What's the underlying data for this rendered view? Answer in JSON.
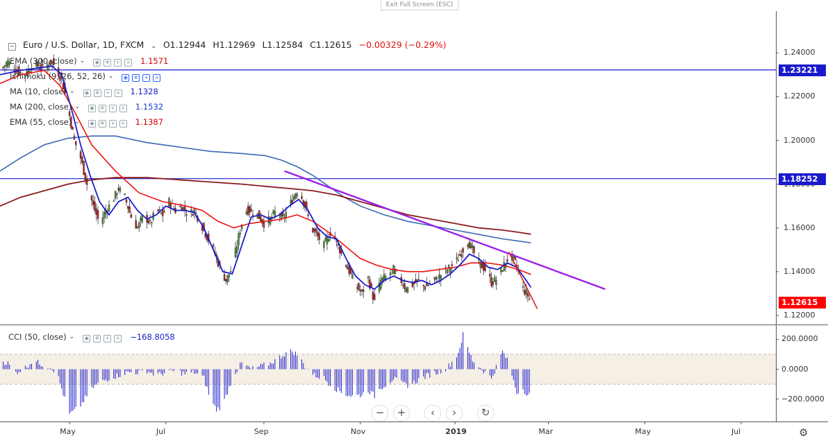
{
  "window": {
    "exit_label": "Exit Full Screen (ESC)"
  },
  "symbol": {
    "name": "Euro / U.S. Dollar, 1D, FXCM",
    "open": "O1.12944",
    "high": "H1.12969",
    "low": "L1.12584",
    "close": "C1.12615",
    "change": "−0.00329 (−0.29%)"
  },
  "indicators": [
    {
      "label": "EMA (300, close)",
      "value": "1.1571",
      "color": "#d50000"
    },
    {
      "label": "Ichimoku (9, 26, 52, 26)",
      "value": "",
      "color": "#2962ff"
    },
    {
      "label": "MA (10, close)",
      "value": "1.1328",
      "color": "#1a1acc"
    },
    {
      "label": "MA (200, close)",
      "value": "1.1532",
      "color": "#1a3acc"
    },
    {
      "label": "EMA (55, close)",
      "value": "1.1387",
      "color": "#d50000"
    }
  ],
  "cci": {
    "label": "CCI (50, close)",
    "value": "−168.8058"
  },
  "price_tags": [
    {
      "value": "1.23221",
      "price": 1.23221,
      "color": "#1a1acc"
    },
    {
      "value": "1.18252",
      "price": 1.18252,
      "color": "#1a1acc"
    },
    {
      "value": "1.12615",
      "price": 1.12615,
      "color": "#ff0000"
    }
  ],
  "nav_buttons": [
    "−",
    "+",
    "‹",
    "›",
    "↻"
  ],
  "settings_icon": "gear-icon",
  "chart_data": {
    "type": "candlestick",
    "y_ticks": [
      "1.24000",
      "1.22000",
      "1.20000",
      "1.18000",
      "1.16000",
      "1.14000",
      "1.12000"
    ],
    "y_tick_values": [
      1.24,
      1.22,
      1.2,
      1.18,
      1.16,
      1.14,
      1.12
    ],
    "ylim": [
      1.1165,
      1.2515
    ],
    "x_ticks": [
      "May",
      "Jul",
      "Sep",
      "Nov",
      "2019",
      "Mar",
      "May",
      "Jul"
    ],
    "x_tick_days": [
      91,
      152,
      214,
      275,
      335,
      394,
      455,
      516
    ],
    "xlim_days": [
      47,
      538
    ],
    "cci_ticks": [
      "200.0000",
      "0.0000",
      "−200.0000"
    ],
    "cci_tick_values": [
      200,
      0,
      -200
    ],
    "cci_band": [
      100,
      -100
    ],
    "cci_ylim": [
      -340,
      290
    ],
    "price_path": [
      [
        47,
        1.232
      ],
      [
        52,
        1.236
      ],
      [
        57,
        1.232
      ],
      [
        63,
        1.23
      ],
      [
        68,
        1.235
      ],
      [
        74,
        1.233
      ],
      [
        80,
        1.236
      ],
      [
        86,
        1.228
      ],
      [
        90,
        1.215
      ],
      [
        94,
        1.2
      ],
      [
        98,
        1.192
      ],
      [
        102,
        1.18
      ],
      [
        106,
        1.17
      ],
      [
        110,
        1.162
      ],
      [
        114,
        1.168
      ],
      [
        118,
        1.172
      ],
      [
        122,
        1.178
      ],
      [
        126,
        1.174
      ],
      [
        130,
        1.165
      ],
      [
        134,
        1.16
      ],
      [
        138,
        1.166
      ],
      [
        142,
        1.162
      ],
      [
        146,
        1.168
      ],
      [
        150,
        1.166
      ],
      [
        154,
        1.172
      ],
      [
        158,
        1.168
      ],
      [
        162,
        1.17
      ],
      [
        166,
        1.166
      ],
      [
        170,
        1.168
      ],
      [
        174,
        1.162
      ],
      [
        178,
        1.156
      ],
      [
        182,
        1.15
      ],
      [
        186,
        1.142
      ],
      [
        190,
        1.136
      ],
      [
        194,
        1.142
      ],
      [
        198,
        1.156
      ],
      [
        202,
        1.168
      ],
      [
        206,
        1.168
      ],
      [
        210,
        1.166
      ],
      [
        214,
        1.162
      ],
      [
        218,
        1.164
      ],
      [
        222,
        1.168
      ],
      [
        226,
        1.164
      ],
      [
        230,
        1.17
      ],
      [
        234,
        1.176
      ],
      [
        236,
        1.178
      ],
      [
        240,
        1.17
      ],
      [
        244,
        1.16
      ],
      [
        248,
        1.156
      ],
      [
        252,
        1.152
      ],
      [
        256,
        1.158
      ],
      [
        260,
        1.154
      ],
      [
        264,
        1.146
      ],
      [
        268,
        1.14
      ],
      [
        272,
        1.134
      ],
      [
        276,
        1.13
      ],
      [
        280,
        1.137
      ],
      [
        284,
        1.126
      ],
      [
        288,
        1.136
      ],
      [
        292,
        1.138
      ],
      [
        296,
        1.141
      ],
      [
        300,
        1.137
      ],
      [
        304,
        1.132
      ],
      [
        308,
        1.134
      ],
      [
        312,
        1.136
      ],
      [
        316,
        1.133
      ],
      [
        320,
        1.135
      ],
      [
        324,
        1.137
      ],
      [
        328,
        1.14
      ],
      [
        332,
        1.142
      ],
      [
        336,
        1.145
      ],
      [
        340,
        1.15
      ],
      [
        343,
        1.154
      ],
      [
        346,
        1.15
      ],
      [
        350,
        1.144
      ],
      [
        354,
        1.141
      ],
      [
        358,
        1.135
      ],
      [
        362,
        1.137
      ],
      [
        366,
        1.143
      ],
      [
        369,
        1.147
      ],
      [
        372,
        1.146
      ],
      [
        375,
        1.14
      ],
      [
        378,
        1.132
      ],
      [
        381,
        1.129
      ],
      [
        383,
        1.1262
      ]
    ],
    "ema55_path": [
      [
        47,
        1.226
      ],
      [
        60,
        1.23
      ],
      [
        75,
        1.232
      ],
      [
        85,
        1.225
      ],
      [
        95,
        1.212
      ],
      [
        105,
        1.198
      ],
      [
        120,
        1.186
      ],
      [
        135,
        1.176
      ],
      [
        150,
        1.172
      ],
      [
        165,
        1.17
      ],
      [
        175,
        1.168
      ],
      [
        185,
        1.163
      ],
      [
        195,
        1.16
      ],
      [
        205,
        1.162
      ],
      [
        215,
        1.163
      ],
      [
        225,
        1.164
      ],
      [
        235,
        1.166
      ],
      [
        245,
        1.163
      ],
      [
        255,
        1.158
      ],
      [
        265,
        1.152
      ],
      [
        275,
        1.146
      ],
      [
        285,
        1.143
      ],
      [
        295,
        1.141
      ],
      [
        305,
        1.14
      ],
      [
        315,
        1.14
      ],
      [
        325,
        1.141
      ],
      [
        335,
        1.142
      ],
      [
        345,
        1.144
      ],
      [
        355,
        1.144
      ],
      [
        365,
        1.143
      ],
      [
        375,
        1.141
      ],
      [
        383,
        1.1387
      ]
    ],
    "ma10_path": [
      [
        47,
        1.23
      ],
      [
        60,
        1.232
      ],
      [
        70,
        1.233
      ],
      [
        80,
        1.234
      ],
      [
        86,
        1.23
      ],
      [
        92,
        1.215
      ],
      [
        98,
        1.198
      ],
      [
        104,
        1.184
      ],
      [
        110,
        1.172
      ],
      [
        116,
        1.166
      ],
      [
        122,
        1.172
      ],
      [
        128,
        1.174
      ],
      [
        134,
        1.168
      ],
      [
        140,
        1.164
      ],
      [
        146,
        1.166
      ],
      [
        152,
        1.17
      ],
      [
        158,
        1.168
      ],
      [
        164,
        1.168
      ],
      [
        170,
        1.167
      ],
      [
        176,
        1.16
      ],
      [
        182,
        1.15
      ],
      [
        188,
        1.14
      ],
      [
        194,
        1.139
      ],
      [
        200,
        1.152
      ],
      [
        206,
        1.165
      ],
      [
        212,
        1.166
      ],
      [
        218,
        1.164
      ],
      [
        224,
        1.166
      ],
      [
        230,
        1.17
      ],
      [
        236,
        1.173
      ],
      [
        242,
        1.168
      ],
      [
        248,
        1.16
      ],
      [
        254,
        1.156
      ],
      [
        260,
        1.155
      ],
      [
        266,
        1.146
      ],
      [
        272,
        1.138
      ],
      [
        278,
        1.134
      ],
      [
        284,
        1.132
      ],
      [
        290,
        1.136
      ],
      [
        296,
        1.138
      ],
      [
        302,
        1.136
      ],
      [
        308,
        1.135
      ],
      [
        314,
        1.136
      ],
      [
        320,
        1.134
      ],
      [
        326,
        1.136
      ],
      [
        332,
        1.139
      ],
      [
        338,
        1.143
      ],
      [
        344,
        1.148
      ],
      [
        350,
        1.146
      ],
      [
        356,
        1.142
      ],
      [
        362,
        1.141
      ],
      [
        368,
        1.144
      ],
      [
        374,
        1.142
      ],
      [
        380,
        1.136
      ],
      [
        383,
        1.1328
      ]
    ],
    "ma200_path": [
      [
        47,
        1.186
      ],
      [
        60,
        1.192
      ],
      [
        75,
        1.198
      ],
      [
        90,
        1.201
      ],
      [
        105,
        1.202
      ],
      [
        120,
        1.202
      ],
      [
        140,
        1.199
      ],
      [
        160,
        1.197
      ],
      [
        180,
        1.195
      ],
      [
        200,
        1.194
      ],
      [
        215,
        1.193
      ],
      [
        225,
        1.191
      ],
      [
        235,
        1.188
      ],
      [
        245,
        1.184
      ],
      [
        255,
        1.179
      ],
      [
        265,
        1.174
      ],
      [
        275,
        1.17
      ],
      [
        290,
        1.166
      ],
      [
        305,
        1.163
      ],
      [
        320,
        1.161
      ],
      [
        335,
        1.159
      ],
      [
        350,
        1.157
      ],
      [
        365,
        1.155
      ],
      [
        375,
        1.154
      ],
      [
        383,
        1.1532
      ]
    ],
    "ema300_path": [
      [
        47,
        1.17
      ],
      [
        60,
        1.174
      ],
      [
        75,
        1.177
      ],
      [
        90,
        1.18
      ],
      [
        105,
        1.182
      ],
      [
        120,
        1.183
      ],
      [
        140,
        1.183
      ],
      [
        160,
        1.182
      ],
      [
        180,
        1.181
      ],
      [
        200,
        1.18
      ],
      [
        215,
        1.179
      ],
      [
        230,
        1.178
      ],
      [
        245,
        1.177
      ],
      [
        260,
        1.175
      ],
      [
        275,
        1.172
      ],
      [
        290,
        1.169
      ],
      [
        305,
        1.166
      ],
      [
        320,
        1.164
      ],
      [
        335,
        1.162
      ],
      [
        350,
        1.16
      ],
      [
        365,
        1.159
      ],
      [
        375,
        1.158
      ],
      [
        383,
        1.1571
      ]
    ],
    "trendlines": [
      {
        "color": "#9b1fe8",
        "points": [
          [
            227,
            1.186
          ],
          [
            430,
            1.132
          ]
        ]
      },
      {
        "color": "#e01010",
        "points": [
          [
            369,
            1.149
          ],
          [
            387,
            1.123
          ]
        ]
      }
    ],
    "horizontal_lines": [
      {
        "price": 1.23221,
        "color": "#1a1acc"
      },
      {
        "price": 1.18252,
        "color": "#1a1acc"
      }
    ],
    "cci_path": [
      [
        47,
        60
      ],
      [
        52,
        40
      ],
      [
        57,
        -20
      ],
      [
        63,
        10
      ],
      [
        68,
        60
      ],
      [
        74,
        30
      ],
      [
        80,
        10
      ],
      [
        84,
        -60
      ],
      [
        88,
        -200
      ],
      [
        91,
        -300
      ],
      [
        94,
        -280
      ],
      [
        98,
        -240
      ],
      [
        102,
        -180
      ],
      [
        106,
        -120
      ],
      [
        110,
        -90
      ],
      [
        116,
        -60
      ],
      [
        122,
        -40
      ],
      [
        128,
        -20
      ],
      [
        134,
        -20
      ],
      [
        140,
        -10
      ],
      [
        146,
        -40
      ],
      [
        152,
        -20
      ],
      [
        158,
        -10
      ],
      [
        164,
        -30
      ],
      [
        170,
        -20
      ],
      [
        176,
        -60
      ],
      [
        180,
        -200
      ],
      [
        184,
        -270
      ],
      [
        188,
        -240
      ],
      [
        192,
        -120
      ],
      [
        196,
        -20
      ],
      [
        200,
        40
      ],
      [
        206,
        0
      ],
      [
        212,
        20
      ],
      [
        218,
        40
      ],
      [
        224,
        80
      ],
      [
        228,
        110
      ],
      [
        232,
        120
      ],
      [
        236,
        90
      ],
      [
        240,
        20
      ],
      [
        246,
        -40
      ],
      [
        252,
        -60
      ],
      [
        258,
        -120
      ],
      [
        264,
        -160
      ],
      [
        270,
        -180
      ],
      [
        276,
        -170
      ],
      [
        280,
        -140
      ],
      [
        284,
        -180
      ],
      [
        288,
        -120
      ],
      [
        292,
        -100
      ],
      [
        296,
        -60
      ],
      [
        300,
        -90
      ],
      [
        306,
        -110
      ],
      [
        312,
        -70
      ],
      [
        318,
        -40
      ],
      [
        324,
        -20
      ],
      [
        330,
        10
      ],
      [
        334,
        60
      ],
      [
        337,
        110
      ],
      [
        340,
        230
      ],
      [
        343,
        140
      ],
      [
        346,
        60
      ],
      [
        350,
        20
      ],
      [
        354,
        -20
      ],
      [
        358,
        -60
      ],
      [
        362,
        40
      ],
      [
        365,
        120
      ],
      [
        368,
        60
      ],
      [
        371,
        -40
      ],
      [
        374,
        -160
      ],
      [
        377,
        -120
      ],
      [
        381,
        -170
      ],
      [
        383,
        -168.8
      ]
    ]
  }
}
